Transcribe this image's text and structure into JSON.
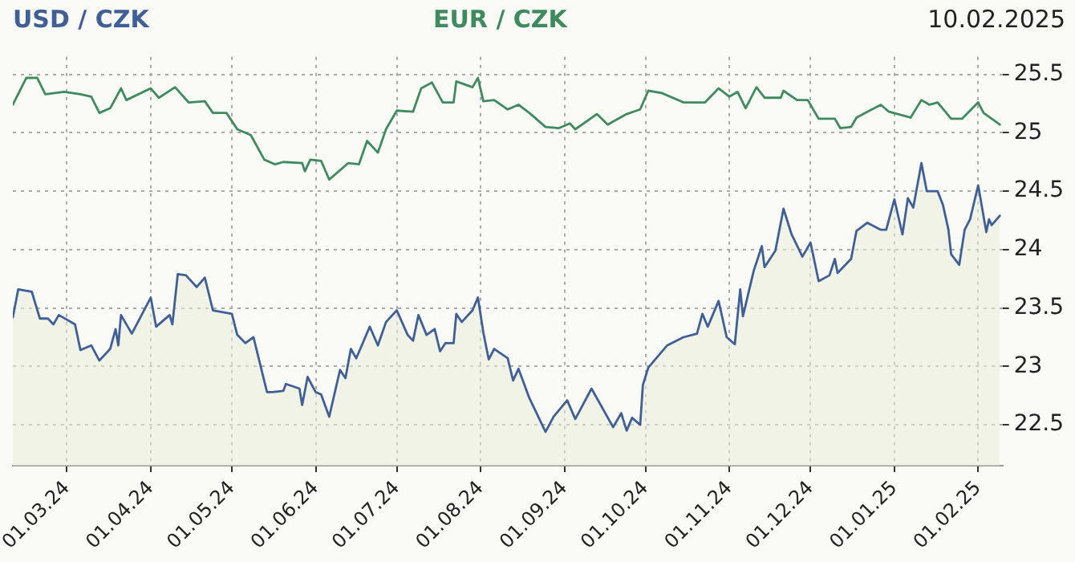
{
  "chart_data": {
    "type": "line",
    "annotations": [
      "10.02.2025"
    ],
    "xlim": [
      "2024-02-10",
      "2025-02-10"
    ],
    "xticks": [
      {
        "value": "2024-03-01",
        "label": "01.03.24"
      },
      {
        "value": "2024-04-01",
        "label": "01.04.24"
      },
      {
        "value": "2024-05-01",
        "label": "01.05.24"
      },
      {
        "value": "2024-06-01",
        "label": "01.06.24"
      },
      {
        "value": "2024-07-01",
        "label": "01.07.24"
      },
      {
        "value": "2024-08-01",
        "label": "01.08.24"
      },
      {
        "value": "2024-09-01",
        "label": "01.09.24"
      },
      {
        "value": "2024-10-01",
        "label": "01.10.24"
      },
      {
        "value": "2024-11-01",
        "label": "01.11.24"
      },
      {
        "value": "2024-12-01",
        "label": "01.12.24"
      },
      {
        "value": "2025-01-01",
        "label": "01.01.25"
      },
      {
        "value": "2025-02-01",
        "label": "01.02.25"
      }
    ],
    "ylim": [
      22.15,
      25.65
    ],
    "yticks": [
      22.5,
      23,
      23.5,
      24,
      24.5,
      25,
      25.5
    ],
    "grid": true,
    "legend": false,
    "series": [
      {
        "name": "USD / CZK",
        "type": "area",
        "color": "#3f5f96",
        "x": [
          "2024-02-10",
          "2024-02-12",
          "2024-02-17",
          "2024-02-20",
          "2024-02-23",
          "2024-02-25",
          "2024-02-27",
          "2024-03-04",
          "2024-03-06",
          "2024-03-10",
          "2024-03-13",
          "2024-03-17",
          "2024-03-19",
          "2024-03-20",
          "2024-03-21",
          "2024-03-25",
          "2024-04-01",
          "2024-04-03",
          "2024-04-08",
          "2024-04-09",
          "2024-04-11",
          "2024-04-14",
          "2024-04-18",
          "2024-04-21",
          "2024-04-24",
          "2024-05-01",
          "2024-05-03",
          "2024-05-06",
          "2024-05-09",
          "2024-05-14",
          "2024-05-16",
          "2024-05-20",
          "2024-05-21",
          "2024-05-26",
          "2024-05-27",
          "2024-05-29",
          "2024-06-01",
          "2024-06-03",
          "2024-06-06",
          "2024-06-10",
          "2024-06-12",
          "2024-06-14",
          "2024-06-16",
          "2024-06-21",
          "2024-06-24",
          "2024-06-27",
          "2024-07-01",
          "2024-07-05",
          "2024-07-07",
          "2024-07-09",
          "2024-07-12",
          "2024-07-15",
          "2024-07-17",
          "2024-07-19",
          "2024-07-22",
          "2024-07-23",
          "2024-07-25",
          "2024-07-29",
          "2024-07-31",
          "2024-08-02",
          "2024-08-04",
          "2024-08-06",
          "2024-08-11",
          "2024-08-13",
          "2024-08-15",
          "2024-08-19",
          "2024-08-25",
          "2024-08-28",
          "2024-09-02",
          "2024-09-05",
          "2024-09-11",
          "2024-09-19",
          "2024-09-22",
          "2024-09-24",
          "2024-09-26",
          "2024-09-29",
          "2024-09-30",
          "2024-10-02",
          "2024-10-09",
          "2024-10-15",
          "2024-10-20",
          "2024-10-22",
          "2024-10-24",
          "2024-10-28",
          "2024-10-31",
          "2024-11-03",
          "2024-11-05",
          "2024-11-06",
          "2024-11-10",
          "2024-11-13",
          "2024-11-14",
          "2024-11-18",
          "2024-11-21",
          "2024-11-24",
          "2024-11-28",
          "2024-12-01",
          "2024-12-04",
          "2024-12-08",
          "2024-12-10",
          "2024-12-11",
          "2024-12-16",
          "2024-12-18",
          "2024-12-22",
          "2024-12-27",
          "2024-12-29",
          "2025-01-01",
          "2025-01-04",
          "2025-01-06",
          "2025-01-08",
          "2025-01-11",
          "2025-01-13",
          "2025-01-17",
          "2025-01-19",
          "2025-01-21",
          "2025-01-22",
          "2025-01-25",
          "2025-01-27",
          "2025-01-29",
          "2025-02-01",
          "2025-02-04",
          "2025-02-05",
          "2025-02-06",
          "2025-02-09"
        ],
        "values": [
          23.42,
          23.66,
          23.64,
          23.41,
          23.41,
          23.36,
          23.44,
          23.36,
          23.14,
          23.18,
          23.05,
          23.15,
          23.32,
          23.18,
          23.44,
          23.28,
          23.59,
          23.34,
          23.44,
          23.36,
          23.79,
          23.78,
          23.68,
          23.76,
          23.48,
          23.45,
          23.27,
          23.2,
          23.25,
          22.78,
          22.78,
          22.79,
          22.85,
          22.81,
          22.67,
          22.91,
          22.78,
          22.76,
          22.57,
          22.97,
          22.9,
          23.15,
          23.07,
          23.34,
          23.18,
          23.38,
          23.48,
          23.27,
          23.22,
          23.44,
          23.27,
          23.32,
          23.13,
          23.2,
          23.2,
          23.45,
          23.38,
          23.48,
          23.59,
          23.29,
          23.06,
          23.15,
          23.07,
          22.88,
          22.98,
          22.73,
          22.44,
          22.57,
          22.71,
          22.55,
          22.81,
          22.48,
          22.6,
          22.45,
          22.56,
          22.5,
          22.84,
          22.99,
          23.18,
          23.25,
          23.28,
          23.45,
          23.34,
          23.56,
          23.25,
          23.19,
          23.66,
          23.43,
          23.82,
          24.03,
          23.85,
          23.99,
          24.35,
          24.13,
          23.94,
          24.06,
          23.73,
          23.78,
          23.92,
          23.8,
          23.92,
          24.16,
          24.23,
          24.17,
          24.17,
          24.43,
          24.13,
          24.44,
          24.36,
          24.74,
          24.5,
          24.5,
          24.38,
          24.17,
          23.96,
          23.87,
          24.17,
          24.26,
          24.55,
          24.15,
          24.26,
          24.21,
          24.29
        ]
      },
      {
        "name": "EUR / CZK",
        "color": "#3f8a5f",
        "x": [
          "2024-02-10",
          "2024-02-15",
          "2024-02-19",
          "2024-02-22",
          "2024-02-29",
          "2024-03-06",
          "2024-03-10",
          "2024-03-13",
          "2024-03-17",
          "2024-03-21",
          "2024-03-23",
          "2024-04-01",
          "2024-04-04",
          "2024-04-10",
          "2024-04-15",
          "2024-04-21",
          "2024-04-24",
          "2024-04-29",
          "2024-05-03",
          "2024-05-08",
          "2024-05-13",
          "2024-05-17",
          "2024-05-20",
          "2024-05-27",
          "2024-05-28",
          "2024-05-30",
          "2024-06-03",
          "2024-06-06",
          "2024-06-13",
          "2024-06-17",
          "2024-06-20",
          "2024-06-24",
          "2024-06-27",
          "2024-07-01",
          "2024-07-07",
          "2024-07-10",
          "2024-07-14",
          "2024-07-18",
          "2024-07-22",
          "2024-07-23",
          "2024-07-29",
          "2024-07-31",
          "2024-08-02",
          "2024-08-06",
          "2024-08-11",
          "2024-08-15",
          "2024-08-19",
          "2024-08-25",
          "2024-08-30",
          "2024-09-03",
          "2024-09-05",
          "2024-09-13",
          "2024-09-17",
          "2024-09-24",
          "2024-09-29",
          "2024-10-02",
          "2024-10-07",
          "2024-10-15",
          "2024-10-23",
          "2024-10-28",
          "2024-11-01",
          "2024-11-04",
          "2024-11-07",
          "2024-11-11",
          "2024-11-14",
          "2024-11-20",
          "2024-11-21",
          "2024-11-26",
          "2024-11-30",
          "2024-12-04",
          "2024-12-10",
          "2024-12-12",
          "2024-12-16",
          "2024-12-18",
          "2024-12-22",
          "2024-12-27",
          "2024-12-30",
          "2025-01-07",
          "2025-01-11",
          "2025-01-14",
          "2025-01-17",
          "2025-01-22",
          "2025-01-26",
          "2025-02-01",
          "2025-02-03",
          "2025-02-09"
        ],
        "values": [
          25.24,
          25.47,
          25.47,
          25.33,
          25.35,
          25.33,
          25.31,
          25.17,
          25.21,
          25.38,
          25.28,
          25.38,
          25.3,
          25.39,
          25.26,
          25.27,
          25.17,
          25.17,
          25.03,
          24.98,
          24.77,
          24.73,
          24.75,
          24.74,
          24.67,
          24.77,
          24.76,
          24.6,
          24.74,
          24.73,
          24.93,
          24.83,
          25.03,
          25.19,
          25.18,
          25.38,
          25.43,
          25.26,
          25.26,
          25.44,
          25.39,
          25.47,
          25.27,
          25.28,
          25.2,
          25.24,
          25.17,
          25.05,
          25.04,
          25.08,
          25.03,
          25.16,
          25.07,
          25.16,
          25.2,
          25.36,
          25.34,
          25.26,
          25.26,
          25.38,
          25.31,
          25.35,
          25.21,
          25.39,
          25.3,
          25.3,
          25.36,
          25.28,
          25.28,
          25.12,
          25.12,
          25.04,
          25.05,
          25.13,
          25.18,
          25.24,
          25.18,
          25.13,
          25.28,
          25.24,
          25.26,
          25.12,
          25.12,
          25.26,
          25.17,
          25.07
        ]
      }
    ]
  }
}
